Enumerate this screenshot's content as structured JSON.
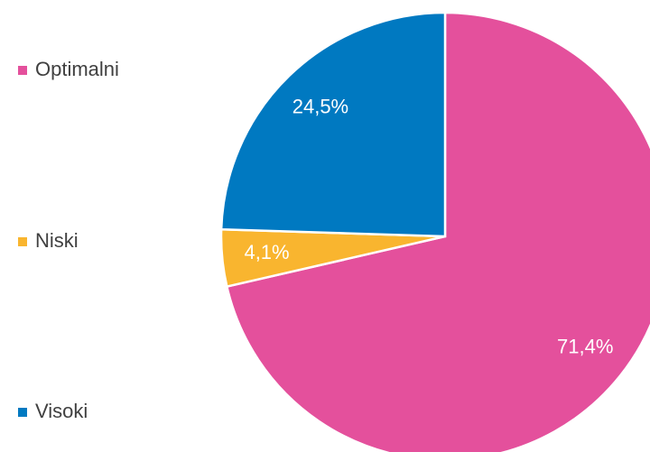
{
  "chart_data": {
    "type": "pie",
    "categories": [
      "Optimalni",
      "Niski",
      "Visoki"
    ],
    "values": [
      71.4,
      4.1,
      24.5
    ],
    "value_labels": [
      "71,4%",
      "4,1%",
      "24,5%"
    ],
    "colors": [
      "#e4509c",
      "#f9b52f",
      "#0079c1"
    ],
    "legend": "left"
  }
}
